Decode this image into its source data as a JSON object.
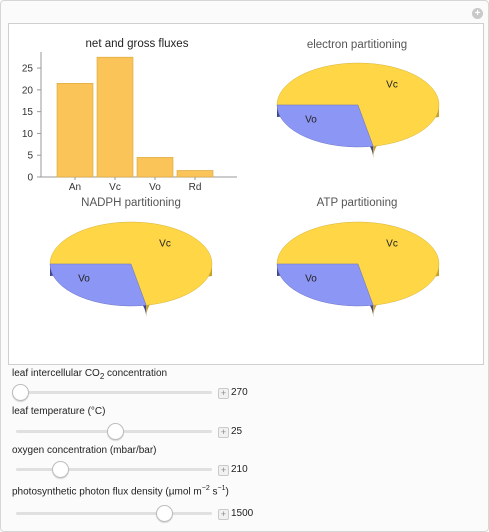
{
  "controls": [
    {
      "label_pre": "leaf intercellular CO",
      "label_sub": "2",
      "label_post": " concentration",
      "value": "270",
      "fraction": 0.02
    },
    {
      "label": "leaf temperature (°C)",
      "value": "25",
      "fraction": 0.5
    },
    {
      "label": "oxygen concentration (mbar/bar)",
      "value": "210",
      "fraction": 0.22
    },
    {
      "label_pre": "photosynthetic photon flux density (µmol m",
      "label_sup1": "−2",
      "label_mid": " s",
      "label_sup2": "−1",
      "label_post": ")",
      "value": "1500",
      "fraction": 0.75
    }
  ],
  "colors": {
    "bar": "#fbc458",
    "pie_vc": "#fed646",
    "pie_vo": "#8c96f4",
    "side_vc": "#c8a12c",
    "side_vo": "#3f468a"
  },
  "chart_data": [
    {
      "type": "bar",
      "title": "net and gross fluxes",
      "categories": [
        "An",
        "Vc",
        "Vo",
        "Rd"
      ],
      "values": [
        21.5,
        27.5,
        4.5,
        1.5
      ],
      "ylim": [
        0,
        28
      ],
      "yticks": [
        "0",
        "5",
        "10",
        "15",
        "20",
        "25"
      ],
      "grid": false
    },
    {
      "type": "pie",
      "title": "electron partitioning",
      "labels": [
        "Vc",
        "Vo"
      ],
      "values": [
        0.72,
        0.28
      ]
    },
    {
      "type": "pie",
      "title": "NADPH partitioning",
      "labels": [
        "Vc",
        "Vo"
      ],
      "values": [
        0.72,
        0.28
      ]
    },
    {
      "type": "pie",
      "title": "ATP partitioning",
      "labels": [
        "Vc",
        "Vo"
      ],
      "values": [
        0.72,
        0.28
      ]
    }
  ]
}
